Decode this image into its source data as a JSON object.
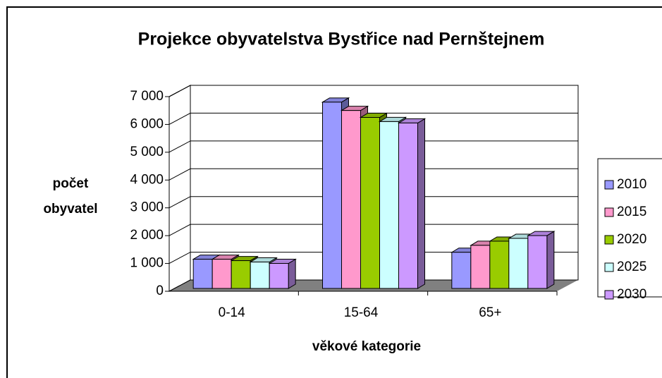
{
  "chart_data": {
    "type": "bar3d",
    "title": "Projekce obyvatelstva Bystřice nad Pernštejnem",
    "y_label": [
      "počet",
      "obyvatel"
    ],
    "x_label": "věkové kategorie",
    "categories": [
      "0-14",
      "15-64",
      "65+"
    ],
    "series": [
      {
        "name": "2010",
        "color": "#9999ff",
        "values": [
          1050,
          6700,
          1300
        ]
      },
      {
        "name": "2015",
        "color": "#ff99cc",
        "values": [
          1050,
          6400,
          1550
        ]
      },
      {
        "name": "2020",
        "color": "#99cc00",
        "values": [
          1000,
          6150,
          1700
        ]
      },
      {
        "name": "2025",
        "color": "#ccffff",
        "values": [
          950,
          6000,
          1800
        ]
      },
      {
        "name": "2030",
        "color": "#cc99ff",
        "values": [
          900,
          5950,
          1900
        ]
      }
    ],
    "ylim": [
      0,
      7000
    ],
    "yticks": [
      0,
      {
        "value": 1000,
        "label": "1 000"
      },
      {
        "value": 2000,
        "label": "2 000"
      },
      {
        "value": 3000,
        "label": "3 000"
      },
      {
        "value": 4000,
        "label": "4 000"
      },
      {
        "value": 5000,
        "label": "5 000"
      },
      {
        "value": 6000,
        "label": "6 000"
      },
      {
        "value": 7000,
        "label": "7 000"
      }
    ],
    "grid": true,
    "legend": "right"
  }
}
